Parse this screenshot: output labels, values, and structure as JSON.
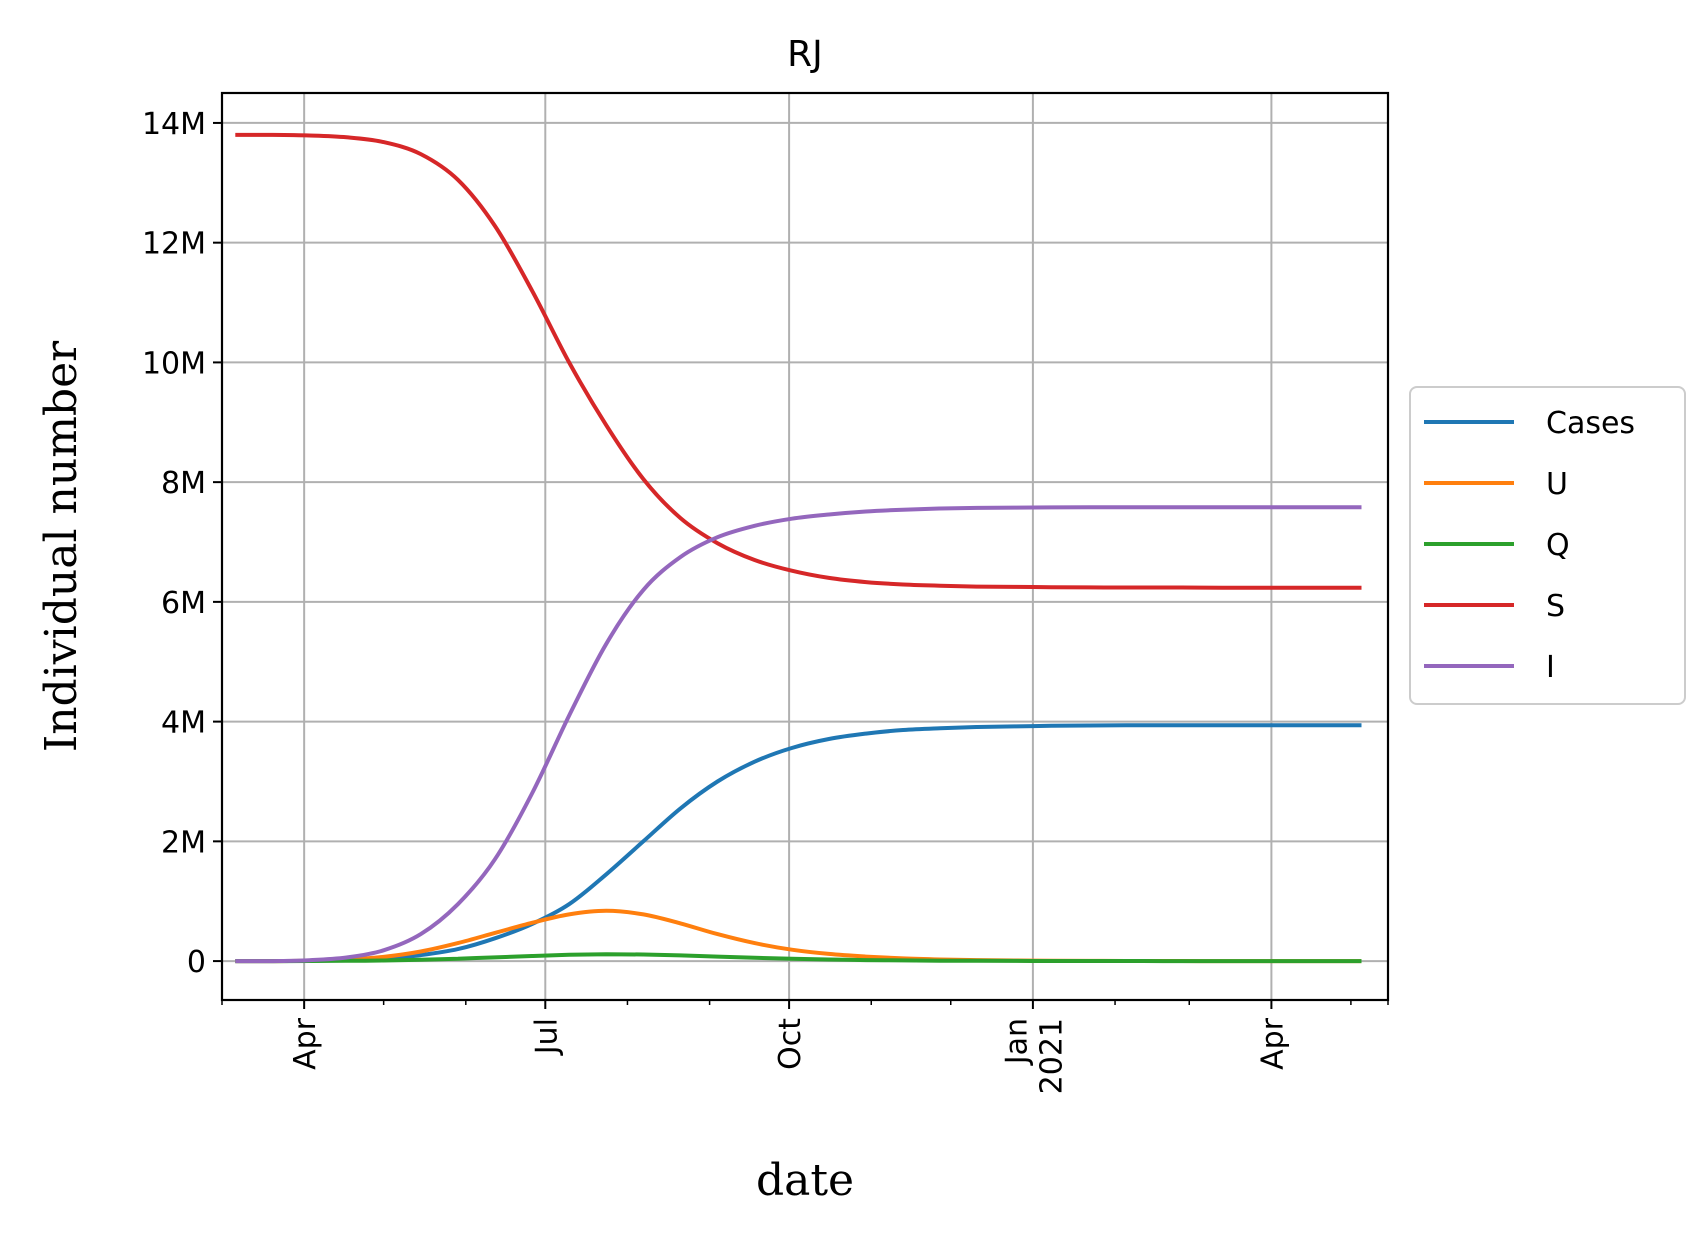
{
  "chart_data": {
    "type": "line",
    "title": "RJ",
    "xlabel": "date",
    "ylabel": "Individual number",
    "x": [
      "2020-03-06",
      "2020-03-20",
      "2020-04-03",
      "2020-04-17",
      "2020-05-01",
      "2020-05-15",
      "2020-05-29",
      "2020-06-12",
      "2020-06-26",
      "2020-07-10",
      "2020-07-24",
      "2020-08-07",
      "2020-08-21",
      "2020-09-04",
      "2020-09-18",
      "2020-10-02",
      "2020-10-16",
      "2020-10-30",
      "2020-11-13",
      "2020-11-27",
      "2020-12-11",
      "2020-12-25",
      "2021-01-08",
      "2021-01-22",
      "2021-02-05",
      "2021-02-19",
      "2021-03-05",
      "2021-03-19",
      "2021-04-02",
      "2021-04-16",
      "2021-04-30",
      "2021-05-05"
    ],
    "series": [
      {
        "name": "Cases",
        "color": "#1f77b4",
        "values": [
          0,
          0,
          5000,
          15000,
          40000,
          100000,
          200000,
          380000,
          620000,
          950000,
          1450000,
          2000000,
          2550000,
          3000000,
          3330000,
          3560000,
          3710000,
          3800000,
          3860000,
          3890000,
          3910000,
          3920000,
          3930000,
          3935000,
          3940000,
          3940000,
          3940000,
          3940000,
          3940000,
          3940000,
          3940000,
          3940000
        ]
      },
      {
        "name": "U",
        "color": "#ff7f0e",
        "values": [
          0,
          0,
          8000,
          25000,
          70000,
          160000,
          300000,
          470000,
          640000,
          780000,
          840000,
          780000,
          630000,
          450000,
          300000,
          190000,
          120000,
          75000,
          45000,
          27000,
          16000,
          10000,
          6000,
          3500,
          2000,
          1000,
          500,
          300,
          200,
          100,
          50,
          30
        ]
      },
      {
        "name": "Q",
        "color": "#2ca02c",
        "values": [
          0,
          0,
          1000,
          4000,
          10000,
          22000,
          40000,
          62000,
          85000,
          105000,
          115000,
          110000,
          95000,
          75000,
          55000,
          38000,
          26000,
          17000,
          11000,
          7000,
          4500,
          2800,
          1700,
          1000,
          600,
          400,
          200,
          100,
          60,
          40,
          20,
          10
        ]
      },
      {
        "name": "S",
        "color": "#d62728",
        "values": [
          13800000,
          13800000,
          13790000,
          13760000,
          13680000,
          13480000,
          13050000,
          12280000,
          11200000,
          10000000,
          8950000,
          8050000,
          7400000,
          6980000,
          6700000,
          6520000,
          6400000,
          6330000,
          6290000,
          6270000,
          6255000,
          6250000,
          6245000,
          6242000,
          6240000,
          6240000,
          6238000,
          6237000,
          6236000,
          6236000,
          6235000,
          6235000
        ]
      },
      {
        "name": "I",
        "color": "#9467bd",
        "values": [
          0,
          0,
          15000,
          60000,
          180000,
          450000,
          950000,
          1700000,
          2800000,
          4100000,
          5300000,
          6200000,
          6750000,
          7080000,
          7270000,
          7390000,
          7460000,
          7510000,
          7540000,
          7560000,
          7570000,
          7575000,
          7578000,
          7580000,
          7580000,
          7580000,
          7580000,
          7580000,
          7580000,
          7580000,
          7580000,
          7580000
        ]
      }
    ],
    "xlim": [
      "2020-03-01",
      "2021-05-15"
    ],
    "ylim": [
      -650000,
      14500000
    ],
    "yticks": [
      0,
      2000000,
      4000000,
      6000000,
      8000000,
      10000000,
      12000000,
      14000000
    ],
    "ytick_labels": [
      "0",
      "2M",
      "4M",
      "6M",
      "8M",
      "10M",
      "12M",
      "14M"
    ],
    "xticks": [
      "2020-04-01",
      "2020-07-01",
      "2020-10-01",
      "2021-01-01",
      "2021-04-01"
    ],
    "xtick_labels": [
      "Apr",
      "Jul",
      "Oct",
      "Jan\n2021",
      "Apr"
    ],
    "grid": true,
    "legend_placement": "center-right outside"
  }
}
